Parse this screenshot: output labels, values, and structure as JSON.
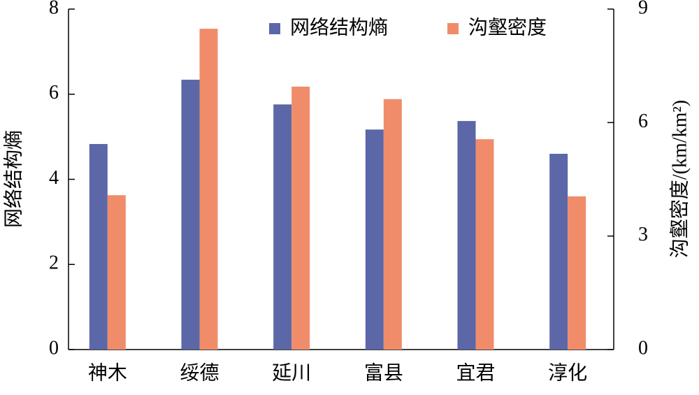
{
  "chart_data": {
    "type": "bar",
    "categories": [
      "神木",
      "绥德",
      "延川",
      "富县",
      "宜君",
      "淳化"
    ],
    "series": [
      {
        "name": "网络结构熵",
        "color": "#5b67a6",
        "values": [
          4.83,
          6.34,
          5.76,
          5.17,
          5.37,
          4.6
        ]
      },
      {
        "name": "沟壑密度",
        "color": "#f08c6a",
        "axis": "y2",
        "values": [
          4.08,
          8.48,
          6.95,
          6.62,
          5.56,
          4.05
        ]
      }
    ],
    "ylabel": "网络结构熵",
    "y2label": "沟壑密度/(km/km²)",
    "ylim": [
      0,
      8
    ],
    "yticks": [
      0,
      2,
      4,
      6,
      8
    ],
    "y2lim": [
      0,
      9
    ],
    "y2ticks": [
      0,
      3,
      6,
      9
    ],
    "legend": "top"
  }
}
